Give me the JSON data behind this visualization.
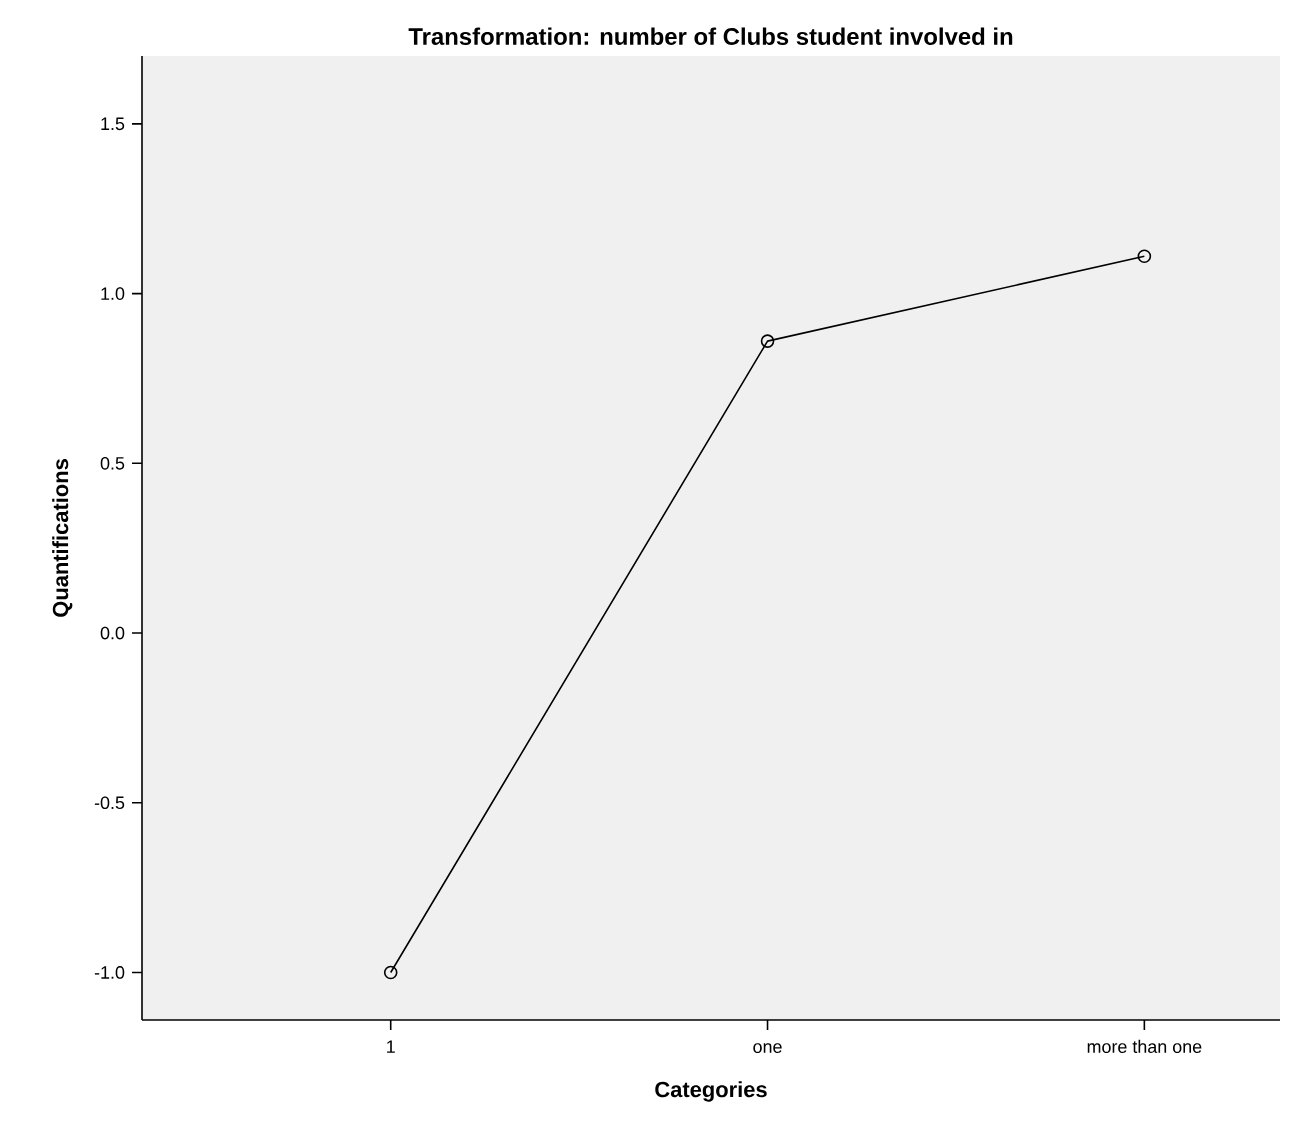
{
  "chart_data": {
    "type": "line",
    "title": "Transformation: number of Clubs student involved in",
    "xlabel": "Categories",
    "ylabel": "Quantifications",
    "categories": [
      "1",
      "one",
      "more than one"
    ],
    "series": [
      {
        "color": "#000000",
        "values": [
          -1.0,
          0.86,
          1.11
        ]
      }
    ],
    "ylim": [
      -1.14,
      1.7
    ],
    "yticks": [
      {
        "value": -1.0,
        "label": "-1.0"
      },
      {
        "value": -0.5,
        "label": "-0.5"
      },
      {
        "value": 0.0,
        "label": "0.0"
      },
      {
        "value": 0.5,
        "label": "0.5"
      },
      {
        "value": 1.0,
        "label": "1.0"
      },
      {
        "value": 1.5,
        "label": "1.5"
      }
    ],
    "marker": "circle",
    "line_style": "solid"
  }
}
